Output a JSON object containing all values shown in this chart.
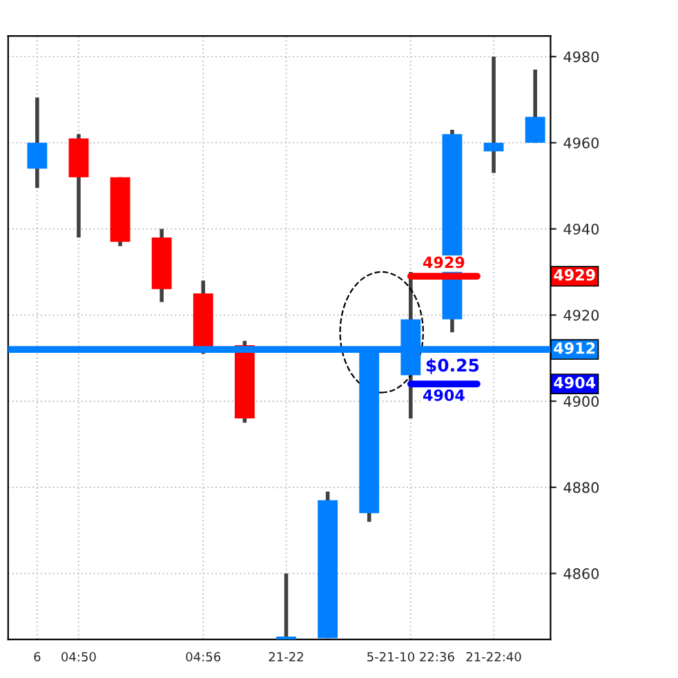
{
  "chart_data": {
    "type": "candlestick",
    "categories": [
      "6",
      "04:50",
      null,
      null,
      "04:56",
      null,
      "21-22",
      null,
      null,
      "5-21-10 22:36",
      null,
      "21-22:40",
      null
    ],
    "ohlc": [
      [
        4954,
        4970.5,
        4949.5,
        4960
      ],
      [
        4961,
        4962,
        4938,
        4952
      ],
      [
        4952,
        4952,
        4936,
        4937
      ],
      [
        4938,
        4940,
        4923,
        4926
      ],
      [
        4925,
        4928,
        4911,
        4912
      ],
      [
        4913,
        4914,
        4895,
        4896
      ],
      [
        4845,
        4860,
        4845,
        4845
      ],
      [
        4845,
        4879,
        4845,
        4877
      ],
      [
        4874,
        4912,
        4872,
        4912
      ],
      [
        4906,
        4930,
        4896,
        4919
      ],
      [
        4919,
        4963,
        4916,
        4962
      ],
      [
        4958,
        4980,
        4953,
        4960
      ],
      [
        4960,
        4977,
        4960,
        4966
      ]
    ],
    "colors": [
      "#0080ff",
      "#ff0000",
      "#ff0000",
      "#ff0000",
      "#ff0000",
      "#ff0000",
      "#0080ff",
      "#0080ff",
      "#0080ff",
      "#0080ff",
      "#0080ff",
      "#0080ff",
      "#0080ff"
    ],
    "ylim": [
      4844.7,
      4984.8
    ],
    "yticks": [
      4860,
      4880,
      4900,
      4920,
      4940,
      4960,
      4980
    ],
    "ref_lines": [
      {
        "axis": "y",
        "value": 4912,
        "label": "4912",
        "color": "#0080ff"
      },
      {
        "axis": "y",
        "value": 4929,
        "label": "4929",
        "color": "#ff0000"
      },
      {
        "axis": "y",
        "value": 4904,
        "label": "4904",
        "color": "#0000ff"
      }
    ],
    "annotations": [
      "$0.25"
    ],
    "grid": true
  }
}
